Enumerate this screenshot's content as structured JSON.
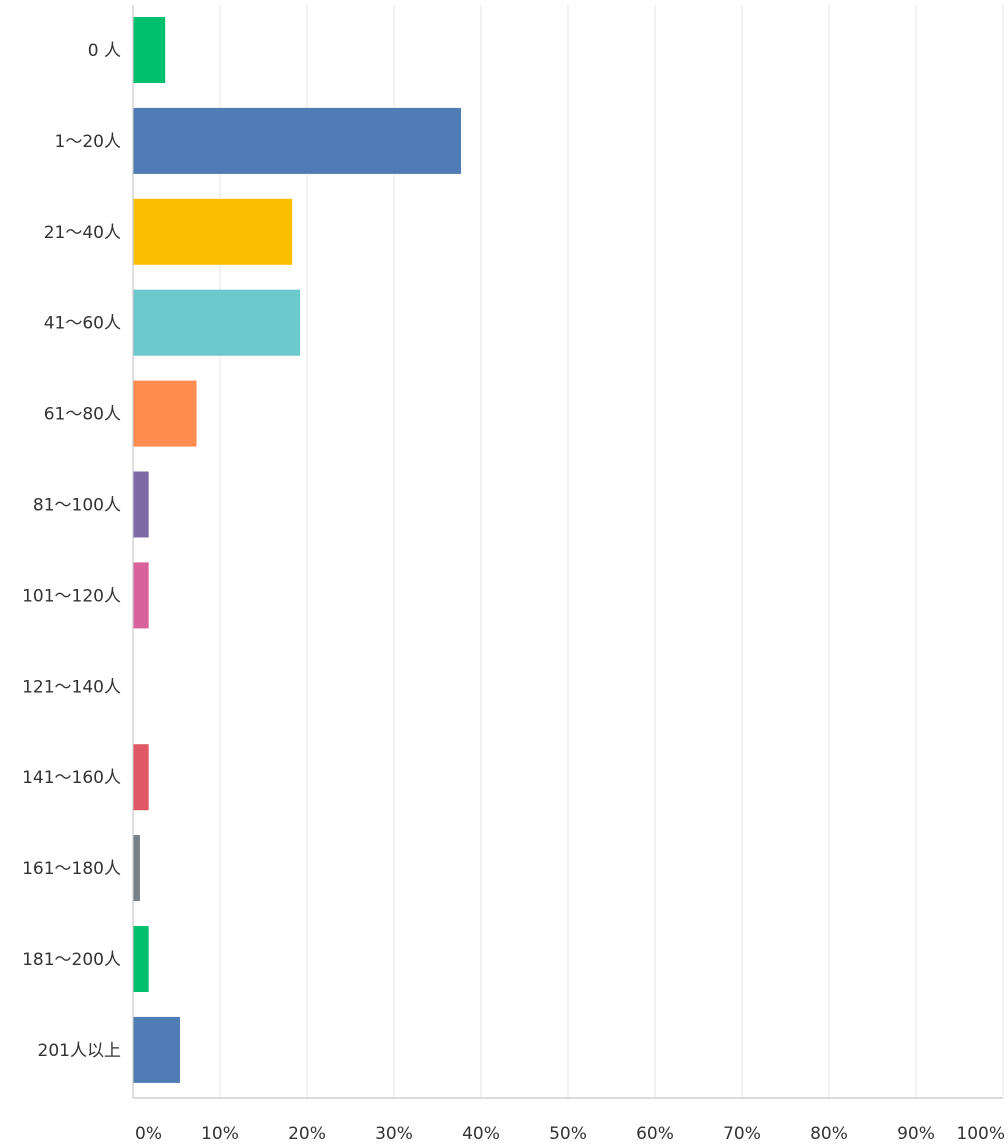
{
  "chart_data": {
    "type": "bar",
    "orientation": "horizontal",
    "categories": [
      "0 人",
      "1〜20人",
      "21〜40人",
      "41〜60人",
      "61〜80人",
      "81〜100人",
      "101〜120人",
      "121〜140人",
      "141〜160人",
      "161〜180人",
      "181〜200人",
      "201人以上"
    ],
    "values": [
      3.7,
      37.7,
      18.3,
      19.2,
      7.3,
      1.8,
      1.8,
      0,
      1.8,
      0.8,
      1.8,
      5.4
    ],
    "colors": [
      "#00bf6f",
      "#507cb6",
      "#f9be00",
      "#6bc8cd",
      "#ff8b4f",
      "#7f6aa8",
      "#d9629c",
      "#c9c9c9",
      "#e05765",
      "#7a8186",
      "#00bf6f",
      "#507cb6"
    ],
    "xlim": [
      0,
      100
    ],
    "ticks": [
      "0%",
      "10%",
      "20%",
      "30%",
      "40%",
      "50%",
      "60%",
      "70%",
      "80%",
      "90%",
      "100%"
    ],
    "grid": true,
    "title": "",
    "xlabel": "",
    "ylabel": ""
  }
}
